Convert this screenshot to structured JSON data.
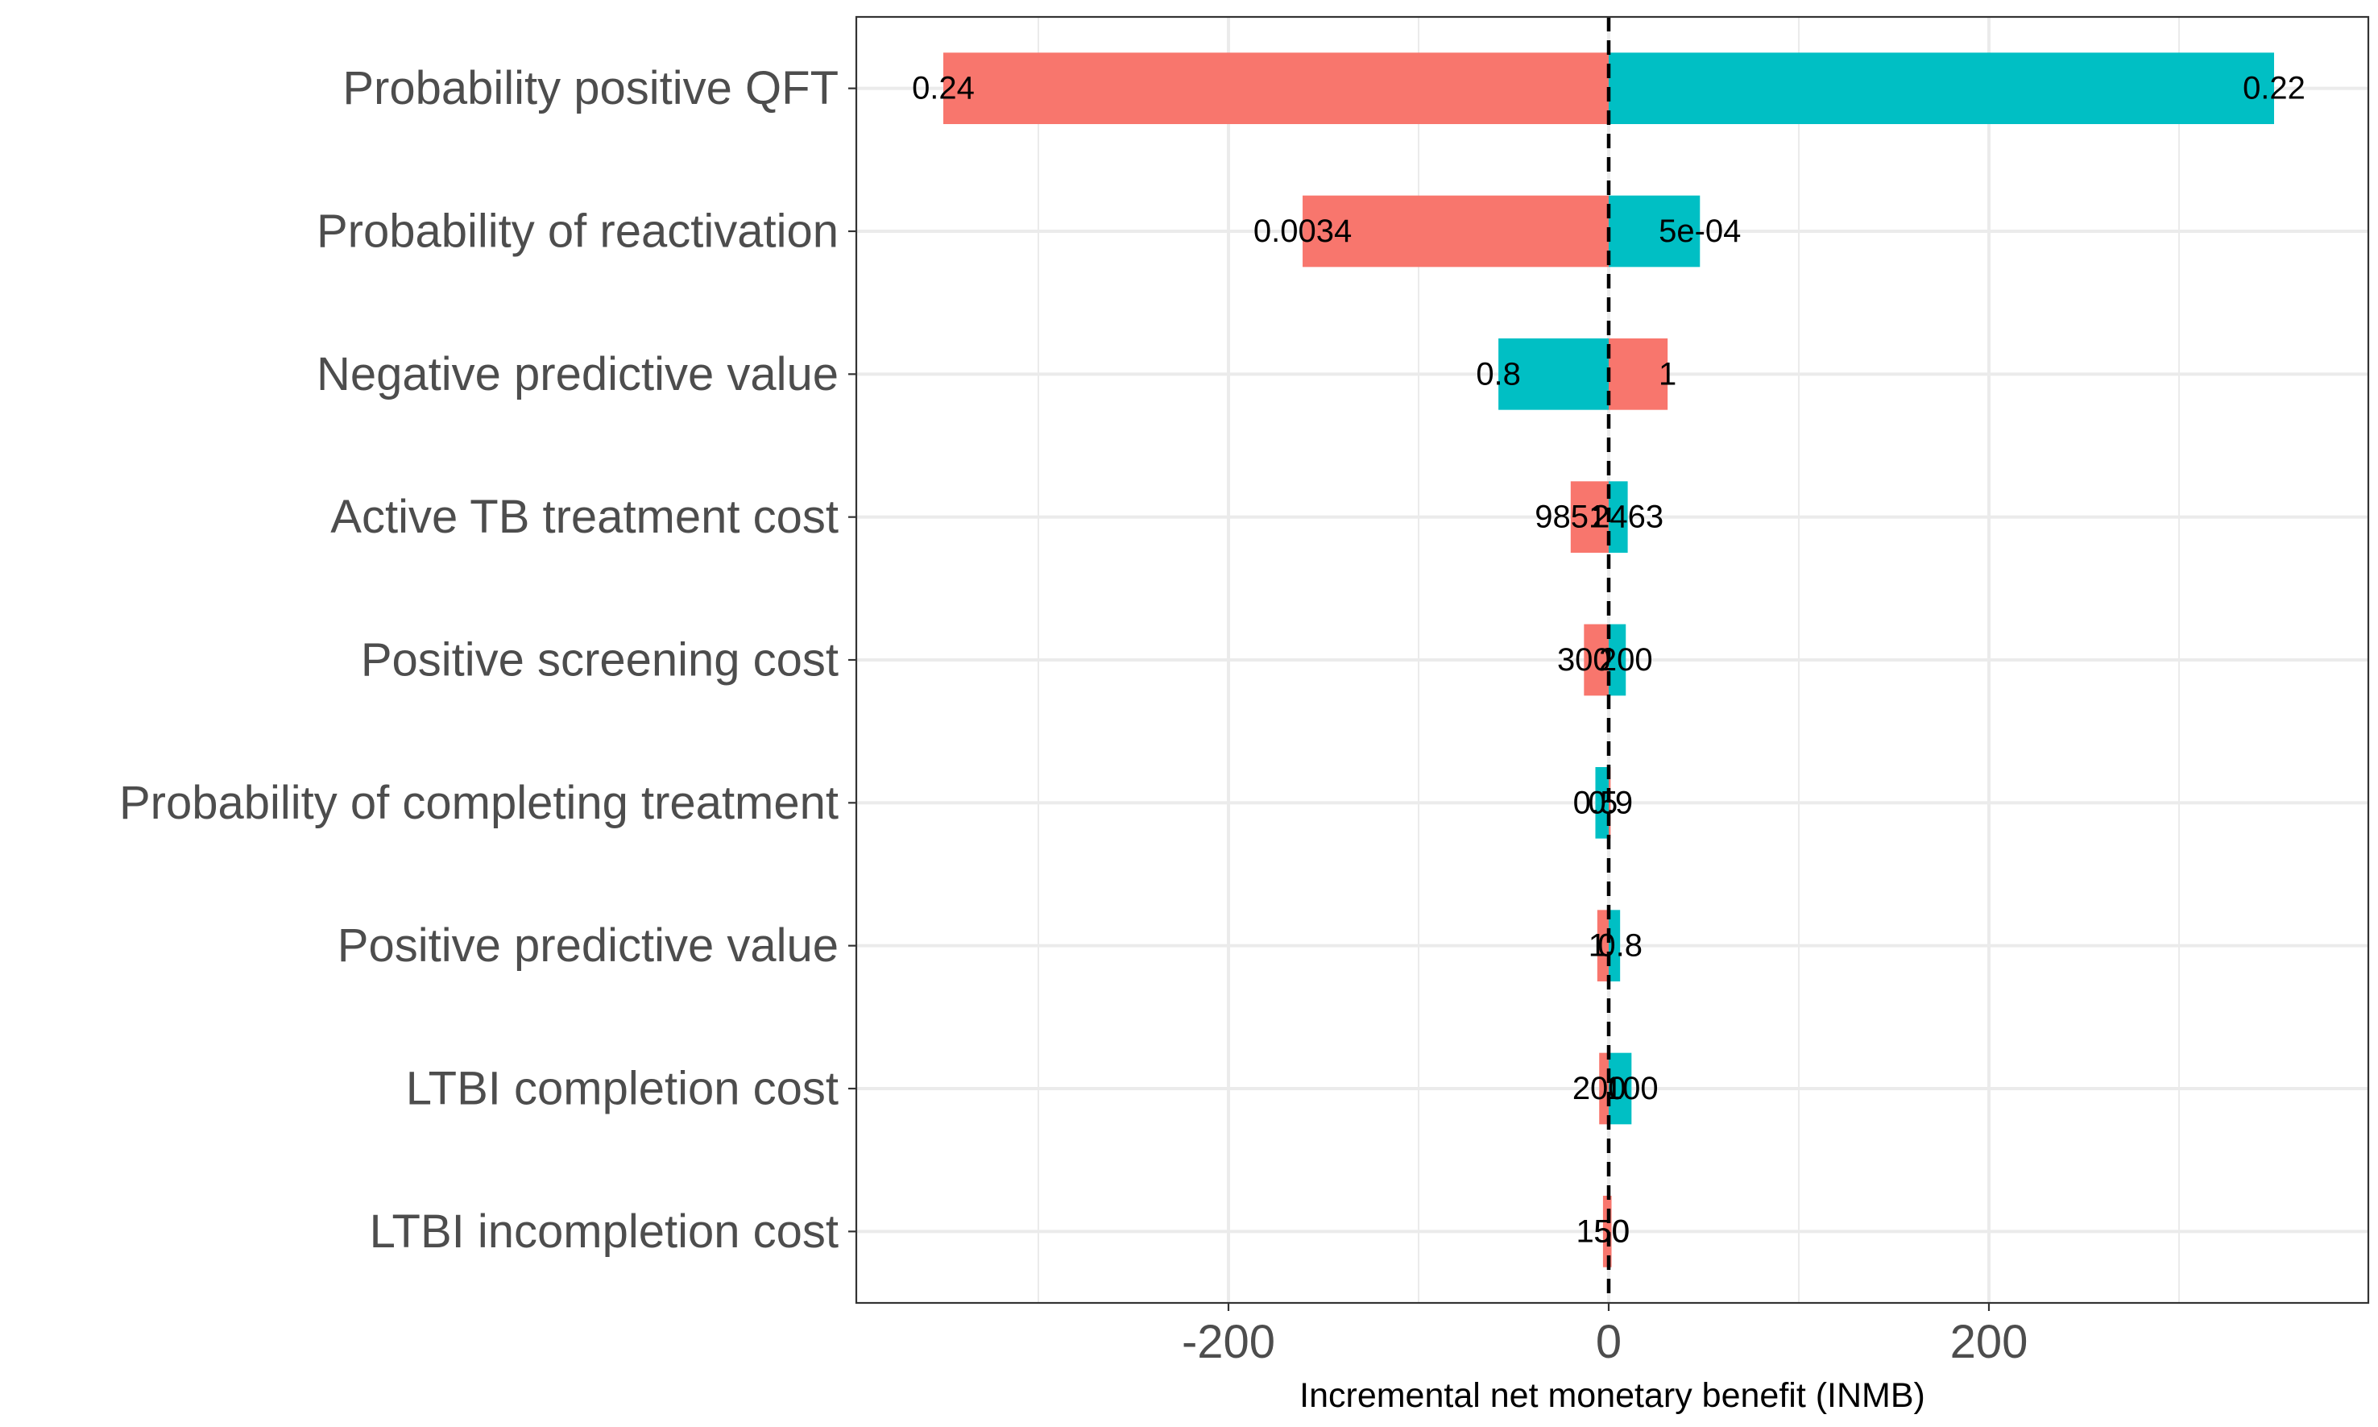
{
  "chart_data": {
    "type": "bar",
    "orientation": "horizontal",
    "subtype": "tornado",
    "xlabel": "Incremental net monetary benefit (INMB)",
    "xlim": [
      -395,
      395
    ],
    "xticks": [
      -200,
      0,
      200
    ],
    "xtick_labels": [
      "-200",
      "0",
      "200"
    ],
    "grid": true,
    "reference_line": 0,
    "colors": {
      "low_side": "#F8766D",
      "high_side": "#00BFC4",
      "axis_text": "#4d4d4d",
      "grid": "#ebebeb"
    },
    "categories": [
      "Probability positive QFT",
      "Probability of reactivation",
      "Negative predictive value",
      "Active TB treatment cost",
      "Positive screening cost",
      "Probability of completing treatment",
      "Positive predictive value",
      "LTBI completion cost",
      "LTBI incompletion cost"
    ],
    "bars": [
      {
        "neg_value": -350,
        "neg_color": "salmon",
        "neg_label": "0.24",
        "pos_value": 350,
        "pos_color": "teal",
        "pos_label": "0.22"
      },
      {
        "neg_value": -161,
        "neg_color": "salmon",
        "neg_label": "0.0034",
        "pos_value": 48,
        "pos_color": "teal",
        "pos_label": "5e-04"
      },
      {
        "neg_value": -58,
        "neg_color": "teal",
        "neg_label": "0.8",
        "pos_value": 31,
        "pos_color": "salmon",
        "pos_label": "1"
      },
      {
        "neg_value": -20,
        "neg_color": "salmon",
        "neg_label": "9851",
        "pos_value": 10,
        "pos_color": "teal",
        "pos_label": "2463"
      },
      {
        "neg_value": -13,
        "neg_color": "salmon",
        "neg_label": "300",
        "pos_value": 9,
        "pos_color": "teal",
        "pos_label": "200"
      },
      {
        "neg_value": -7,
        "neg_color": "teal",
        "neg_label": "0.5",
        "pos_value": 1,
        "pos_color": "salmon",
        "pos_label": "0.9"
      },
      {
        "neg_value": -6,
        "neg_color": "salmon",
        "neg_label": "1",
        "pos_value": 6,
        "pos_color": "teal",
        "pos_label": "0.8"
      },
      {
        "neg_value": -5,
        "neg_color": "salmon",
        "neg_label": "200",
        "pos_value": 12,
        "pos_color": "teal",
        "pos_label": "100"
      },
      {
        "neg_value": -3,
        "neg_color": "salmon",
        "neg_label": "150",
        "pos_value": 1.5,
        "pos_color": "salmon",
        "pos_label": "50"
      }
    ]
  }
}
